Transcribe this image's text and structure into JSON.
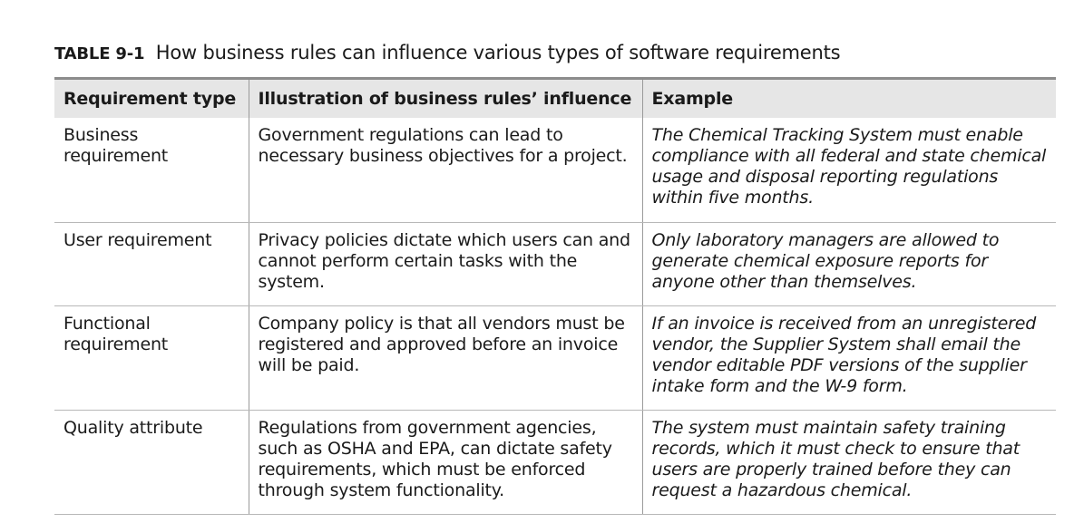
{
  "caption": {
    "label": "TABLE 9-1",
    "text": "How business rules can influence various types of software requirements"
  },
  "headers": {
    "col1": "Requirement type",
    "col2": "Illustration of business rules’ influence",
    "col3": "Example"
  },
  "rows": [
    {
      "type": "Business requirement",
      "illustration": "Government regulations can lead to necessary business objectives for a project.",
      "example": "The Chemical Tracking System must enable compliance with all federal and state chemical usage and disposal reporting regulations within five months."
    },
    {
      "type": "User requirement",
      "illustration": "Privacy policies dictate which users can and cannot perform certain tasks with the system.",
      "example": "Only laboratory managers are allowed to generate chemical exposure reports for anyone other than themselves."
    },
    {
      "type": "Functional requirement",
      "illustration": "Company policy is that all vendors must be registered and approved before an invoice will be paid.",
      "example": "If an invoice is received from an unregistered vendor, the Supplier System shall email the vendor editable PDF versions of the supplier intake form and the W-9 form."
    },
    {
      "type": "Quality attribute",
      "illustration": "Regulations from government agencies, such as OSHA and EPA, can dictate safety requirements, which must be enforced through system functionality.",
      "example": "The system must maintain safety training records, which it must check to ensure that users are properly trained before they can request a hazardous chemical."
    }
  ]
}
